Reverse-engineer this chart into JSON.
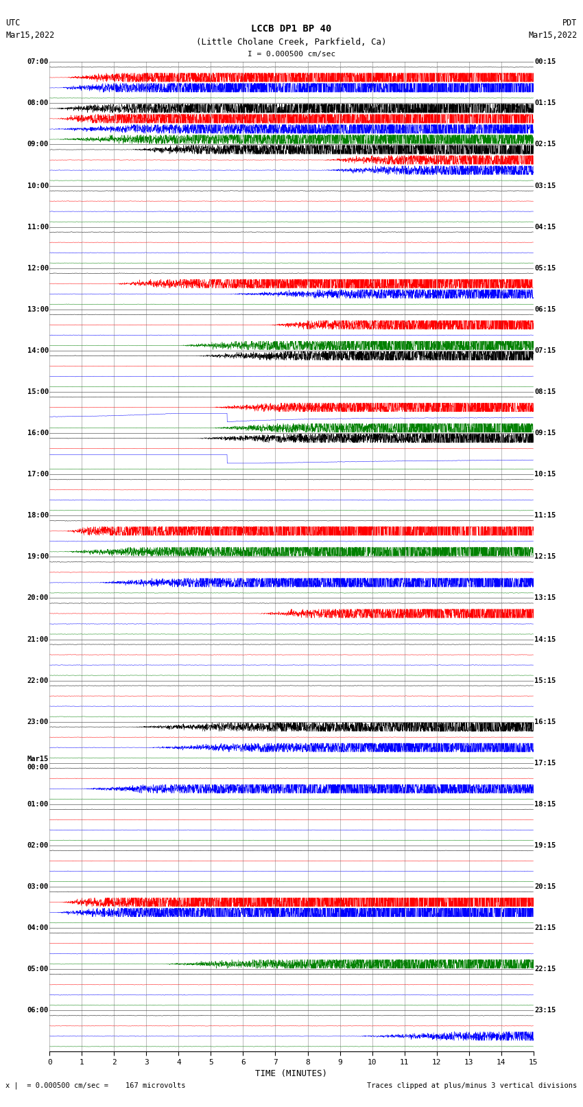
{
  "title_line1": "LCCB DP1 BP 40",
  "title_line2": "(Little Cholane Creek, Parkfield, Ca)",
  "scale_label": "I = 0.000500 cm/sec",
  "utc_label": "UTC",
  "utc_date": "Mar15,2022",
  "pdt_label": "PDT",
  "pdt_date": "Mar15,2022",
  "xlabel": "TIME (MINUTES)",
  "footer_left": "x |  = 0.000500 cm/sec =    167 microvolts",
  "footer_right": "Traces clipped at plus/minus 3 vertical divisions",
  "left_times": [
    "07:00",
    "08:00",
    "09:00",
    "10:00",
    "11:00",
    "12:00",
    "13:00",
    "14:00",
    "15:00",
    "16:00",
    "17:00",
    "18:00",
    "19:00",
    "20:00",
    "21:00",
    "22:00",
    "23:00",
    "Mar15\n00:00",
    "01:00",
    "02:00",
    "03:00",
    "04:00",
    "05:00",
    "06:00"
  ],
  "right_times": [
    "00:15",
    "01:15",
    "02:15",
    "03:15",
    "04:15",
    "05:15",
    "06:15",
    "07:15",
    "08:15",
    "09:15",
    "10:15",
    "11:15",
    "12:15",
    "13:15",
    "14:15",
    "15:15",
    "16:15",
    "17:15",
    "18:15",
    "19:15",
    "20:15",
    "21:15",
    "22:15",
    "23:15"
  ],
  "n_rows": 24,
  "trace_color_order": [
    "black",
    "red",
    "blue",
    "green"
  ],
  "bg_color": "white",
  "xmin": 0,
  "xmax": 15,
  "xticks": [
    0,
    1,
    2,
    3,
    4,
    5,
    6,
    7,
    8,
    9,
    10,
    11,
    12,
    13,
    14,
    15
  ]
}
